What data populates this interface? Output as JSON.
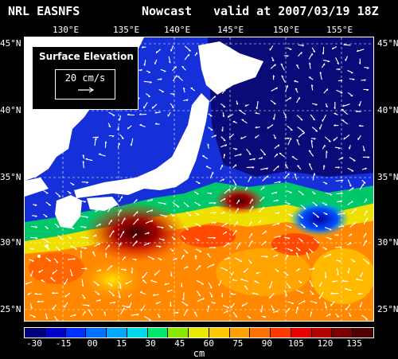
{
  "title": {
    "model": "NRL EASNFS",
    "product": "Nowcast",
    "valid": "valid at 2007/03/19 18Z"
  },
  "axes": {
    "longitudes": [
      "130°E",
      "135°E",
      "140°E",
      "145°E",
      "150°E",
      "155°E"
    ],
    "latitudes": [
      "45°N",
      "40°N",
      "35°N",
      "30°N",
      "25°N"
    ]
  },
  "legend": {
    "title": "Surface Elevation",
    "speed_label": "20 cm/s"
  },
  "colorbar": {
    "tick_labels": [
      "-30",
      "-15",
      "00",
      "15",
      "30",
      "45",
      "60",
      "75",
      "90",
      "105",
      "120",
      "135"
    ],
    "unit": "cm",
    "colors": [
      "#00007a",
      "#0000c8",
      "#0030ff",
      "#0070ff",
      "#00a8ff",
      "#00d8e8",
      "#00e870",
      "#88e800",
      "#e8e800",
      "#ffc800",
      "#ffa000",
      "#ff7000",
      "#ff3800",
      "#e80000",
      "#b40000",
      "#780000",
      "#500000"
    ]
  },
  "map_colors": {
    "land": "#ffffff",
    "cold_water": "#0a0a70",
    "mid_water": "#1a2ae0",
    "front": "#00c8ff",
    "warm_water": "#ff9000",
    "hot_core": "#a00000",
    "current_arrows": "#ffffff"
  }
}
